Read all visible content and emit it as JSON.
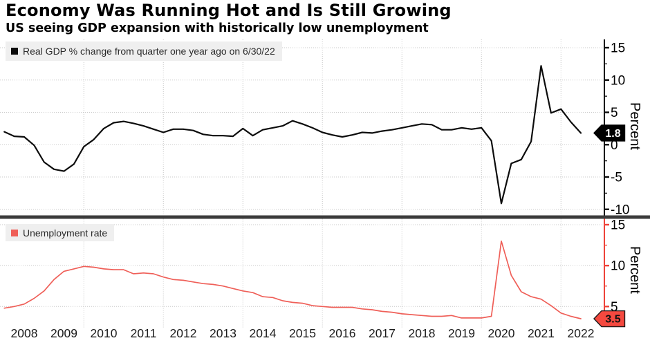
{
  "header": {
    "title": "Economy Was Running Hot and Is Still Growing",
    "subtitle": "US seeing GDP expansion with historically low unemployment"
  },
  "colors": {
    "gdp_line": "#0c0c0c",
    "unemployment_line": "#ef5f58",
    "gdp_badge_bg": "#000000",
    "gdp_badge_text": "#ffffff",
    "unemployment_badge_bg": "#f4493f",
    "unemployment_badge_text": "#111111",
    "unemployment_badge_border": "#1a1a1a",
    "axis_top": "#0c0c0c",
    "axis_bottom": "#ee4339",
    "grid": "#c9c9c9",
    "legend_bg": "#efefef",
    "separator": "#3b3b3b",
    "tick_label": "#000000",
    "year_label": "#1c1c1c"
  },
  "x_axis": {
    "year_labels": [
      "2008",
      "2009",
      "2010",
      "2011",
      "2012",
      "2013",
      "2014",
      "2015",
      "2016",
      "2017",
      "2018",
      "2019",
      "2020",
      "2021",
      "2022"
    ],
    "gridline_years": [
      2010,
      2012,
      2014,
      2016,
      2018,
      2020,
      2022
    ]
  },
  "chart_data": [
    {
      "type": "line",
      "panel": "top",
      "legend": "Real GDP % change from quarter one year ago on 6/30/22",
      "ylabel": "Percent",
      "color": "#0c0c0c",
      "y_ticks": [
        15,
        10,
        5,
        0,
        -5,
        -10
      ],
      "y_minor_ticks": [
        12.5,
        7.5,
        2.5,
        -2.5,
        -7.5
      ],
      "ylim": [
        -11,
        16.2
      ],
      "x_range": [
        2008,
        2022.5
      ],
      "x_start": 2008.0,
      "x_step": 0.25,
      "period_start": "2007Q4",
      "period_end": "2022Q2",
      "badge": {
        "label": "1.8",
        "value": 1.8
      },
      "values": [
        2.0,
        1.3,
        1.2,
        -0.1,
        -2.7,
        -3.8,
        -4.1,
        -3.0,
        -0.3,
        0.8,
        2.5,
        3.4,
        3.6,
        3.3,
        2.9,
        2.4,
        1.9,
        2.4,
        2.4,
        2.2,
        1.6,
        1.4,
        1.4,
        1.3,
        2.5,
        1.4,
        2.3,
        2.6,
        2.9,
        3.7,
        3.2,
        2.6,
        1.9,
        1.5,
        1.2,
        1.5,
        1.9,
        1.8,
        2.1,
        2.3,
        2.6,
        2.9,
        3.2,
        3.1,
        2.3,
        2.3,
        2.6,
        2.4,
        2.6,
        0.6,
        -9.1,
        -2.9,
        -2.3,
        0.5,
        12.2,
        4.9,
        5.5,
        3.5,
        1.8
      ]
    },
    {
      "type": "line",
      "panel": "bottom",
      "legend": "Unemployment rate",
      "ylabel": "Percent",
      "color": "#ef5f58",
      "y_ticks": [
        15,
        10,
        5
      ],
      "y_minor_ticks": [
        12.5,
        7.5
      ],
      "ylim": [
        2.7,
        15.6
      ],
      "x_range": [
        2008,
        2022.5
      ],
      "x_start": 2008.0,
      "x_step": 0.25,
      "period_start": "2007Q4",
      "period_end": "2022Q2",
      "badge": {
        "label": "3.5",
        "value": 3.5
      },
      "values": [
        4.8,
        5.0,
        5.3,
        6.0,
        6.9,
        8.3,
        9.3,
        9.6,
        9.9,
        9.8,
        9.6,
        9.5,
        9.5,
        9.0,
        9.1,
        9.0,
        8.6,
        8.3,
        8.2,
        8.0,
        7.8,
        7.7,
        7.5,
        7.2,
        6.9,
        6.7,
        6.2,
        6.1,
        5.7,
        5.5,
        5.4,
        5.1,
        5.0,
        4.9,
        4.9,
        4.9,
        4.7,
        4.6,
        4.4,
        4.3,
        4.1,
        4.0,
        3.9,
        3.8,
        3.8,
        3.9,
        3.6,
        3.6,
        3.6,
        3.8,
        13.0,
        8.8,
        6.8,
        6.2,
        5.9,
        5.1,
        4.2,
        3.8,
        3.5
      ]
    }
  ]
}
